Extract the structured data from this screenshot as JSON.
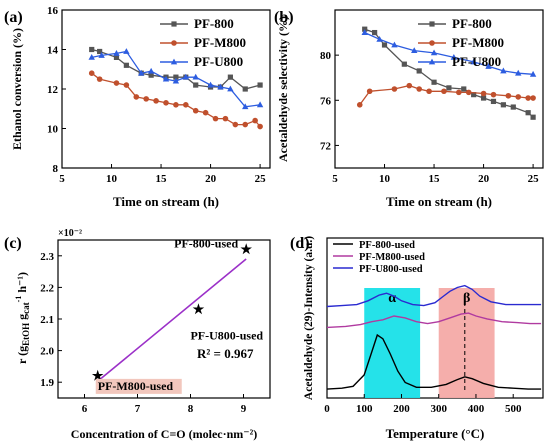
{
  "chart_data": [
    {
      "panel": "(a)",
      "type": "line",
      "xlabel": "Time on stream (h)",
      "ylabel": "Ethanol conversion (%)",
      "xlim": [
        5,
        26
      ],
      "ylim": [
        8,
        16
      ],
      "xticks": [
        5,
        10,
        15,
        20,
        25
      ],
      "yticks": [
        8,
        10,
        12,
        14,
        16
      ],
      "legend_position": "top-right",
      "series": [
        {
          "name": "PF-800",
          "color": "#555555",
          "marker": "square",
          "x": [
            8,
            8.8,
            10.5,
            11.5,
            13,
            14,
            15.5,
            16.5,
            17.5,
            18.5,
            20,
            21,
            22,
            23.5,
            25
          ],
          "y": [
            14.0,
            13.9,
            13.6,
            13.2,
            12.8,
            12.7,
            12.6,
            12.6,
            12.6,
            12.2,
            12.1,
            12.1,
            12.6,
            12.0,
            12.2
          ]
        },
        {
          "name": "PF-M800",
          "color": "#c0502d",
          "marker": "circle",
          "x": [
            8,
            8.8,
            10.5,
            11.5,
            12.5,
            13.5,
            14.5,
            15.5,
            16.5,
            17.5,
            18.5,
            19.5,
            20.5,
            21.5,
            22.5,
            23.5,
            24.5,
            25
          ],
          "y": [
            12.8,
            12.5,
            12.3,
            12.2,
            11.6,
            11.5,
            11.4,
            11.3,
            11.2,
            11.2,
            10.9,
            10.8,
            10.5,
            10.5,
            10.2,
            10.2,
            10.4,
            10.1
          ]
        },
        {
          "name": "PF-U800",
          "color": "#2d5de0",
          "marker": "triangle",
          "x": [
            8,
            9,
            10.5,
            11.5,
            13,
            14,
            15.5,
            16.5,
            17.5,
            18.5,
            20,
            21,
            22,
            23.5,
            25
          ],
          "y": [
            13.6,
            13.7,
            13.8,
            13.9,
            12.8,
            12.9,
            12.5,
            12.4,
            12.6,
            12.6,
            12.2,
            12.1,
            12.0,
            11.1,
            11.2
          ]
        }
      ]
    },
    {
      "panel": "(b)",
      "type": "line",
      "xlabel": "Time on stream (h)",
      "ylabel": "Acetaldehyde selectivity (%)",
      "xlim": [
        5,
        26
      ],
      "ylim": [
        70,
        84
      ],
      "xticks": [
        5,
        10,
        15,
        20,
        25
      ],
      "yticks": [
        72,
        76,
        80
      ],
      "legend_position": "top-right",
      "series": [
        {
          "name": "PF-800",
          "color": "#555555",
          "marker": "square",
          "x": [
            8,
            9,
            10,
            12,
            13.5,
            15,
            16.5,
            18,
            19,
            20,
            21,
            22,
            23,
            24.5,
            25
          ],
          "y": [
            82.3,
            82.0,
            80.9,
            79.2,
            78.6,
            77.6,
            77.1,
            77.0,
            76.5,
            76.2,
            75.9,
            75.6,
            75.4,
            74.9,
            74.5
          ]
        },
        {
          "name": "PF-M800",
          "color": "#c0502d",
          "marker": "circle",
          "x": [
            7.5,
            8.5,
            11,
            12.5,
            13.5,
            14.5,
            16,
            17.5,
            18.5,
            20,
            21,
            22.5,
            23.5,
            24.5,
            25
          ],
          "y": [
            75.6,
            76.8,
            77.0,
            77.3,
            77.0,
            76.8,
            76.8,
            76.7,
            76.7,
            76.6,
            76.5,
            76.4,
            76.3,
            76.2,
            76.2
          ]
        },
        {
          "name": "PF-U800",
          "color": "#2d5de0",
          "marker": "triangle",
          "x": [
            8,
            9.5,
            11,
            13,
            15,
            17,
            19,
            20.5,
            22,
            23.5,
            25
          ],
          "y": [
            82.0,
            81.4,
            80.9,
            80.4,
            80.2,
            79.8,
            79.4,
            79.0,
            78.6,
            78.4,
            78.3
          ]
        }
      ]
    },
    {
      "panel": "(c)",
      "type": "scatter",
      "xlabel": "Concentration of C=O (molec·nm⁻²)",
      "ylabel_main": "r (g",
      "ylabel_sub1": "EtOH",
      "ylabel_mid": " g",
      "ylabel_sub2": "cat",
      "ylabel_sup": "-1",
      "ylabel_tail": " h⁻¹)",
      "axis_multiplier": "×10⁻²",
      "xlim": [
        5.5,
        9.5
      ],
      "ylim": [
        1.85,
        2.35
      ],
      "xticks": [
        6,
        7,
        8,
        9
      ],
      "yticks": [
        1.9,
        2.0,
        2.1,
        2.2,
        2.3
      ],
      "annotation": "R² = 0.967",
      "fit_line": {
        "color": "#9b30c8",
        "x": [
          6.3,
          9.05
        ],
        "y": [
          1.91,
          2.29
        ]
      },
      "points": [
        {
          "label": "PF-M800-used",
          "x": 6.25,
          "y": 1.92,
          "label_color": "#c0502d",
          "label_bg": "#f2c7bd"
        },
        {
          "label": "PF-U800-used",
          "x": 8.15,
          "y": 2.13,
          "label_color": "#2d5de0",
          "label_bg": ""
        },
        {
          "label": "PF-800-used",
          "x": 9.05,
          "y": 2.32,
          "label_color": "#000000",
          "label_bg": ""
        }
      ],
      "marker_color": "#4bb8e8"
    },
    {
      "panel": "(d)",
      "type": "line",
      "xlabel": "Temperature (°C)",
      "ylabel": "Acetaldehyde (29)-Intensity (a.u.)",
      "xlim": [
        0,
        580
      ],
      "xticks": [
        0,
        100,
        200,
        300,
        400,
        500
      ],
      "regions": [
        {
          "label": "α",
          "x0": 100,
          "x1": 250,
          "color": "#19e0e8",
          "label_color": "#1f8a3a"
        },
        {
          "label": "β",
          "x0": 300,
          "x1": 450,
          "color": "#f4aaa6",
          "label_color": "#b02020"
        }
      ],
      "peak_line_x": 370,
      "legend_position": "top-left",
      "series": [
        {
          "name": "PF-800-used",
          "color": "#000000",
          "x": [
            0,
            40,
            70,
            100,
            120,
            135,
            150,
            170,
            190,
            210,
            240,
            280,
            320,
            350,
            370,
            390,
            420,
            460,
            500,
            540,
            575
          ],
          "y": [
            0.03,
            0.04,
            0.06,
            0.18,
            0.42,
            0.6,
            0.56,
            0.4,
            0.22,
            0.1,
            0.05,
            0.05,
            0.08,
            0.13,
            0.16,
            0.14,
            0.09,
            0.05,
            0.04,
            0.03,
            0.03
          ]
        },
        {
          "name": "PF-M800-used",
          "color": "#b03aa0",
          "x": [
            0,
            50,
            90,
            120,
            150,
            180,
            210,
            240,
            270,
            300,
            330,
            360,
            380,
            400,
            430,
            470,
            510,
            545,
            575
          ],
          "y": [
            0.68,
            0.69,
            0.71,
            0.74,
            0.76,
            0.8,
            0.78,
            0.74,
            0.72,
            0.74,
            0.78,
            0.82,
            0.83,
            0.8,
            0.77,
            0.74,
            0.73,
            0.72,
            0.72
          ]
        },
        {
          "name": "PF-U800-used",
          "color": "#2a2ad0",
          "x": [
            0,
            40,
            80,
            110,
            140,
            160,
            180,
            200,
            230,
            260,
            290,
            310,
            330,
            350,
            370,
            390,
            410,
            440,
            480,
            520,
            575
          ],
          "y": [
            0.9,
            0.91,
            0.92,
            0.96,
            1.02,
            1.04,
            1.01,
            0.96,
            0.92,
            0.91,
            0.94,
            1.0,
            1.06,
            1.1,
            1.12,
            1.08,
            1.01,
            0.95,
            0.92,
            0.92,
            0.92
          ]
        }
      ]
    }
  ]
}
